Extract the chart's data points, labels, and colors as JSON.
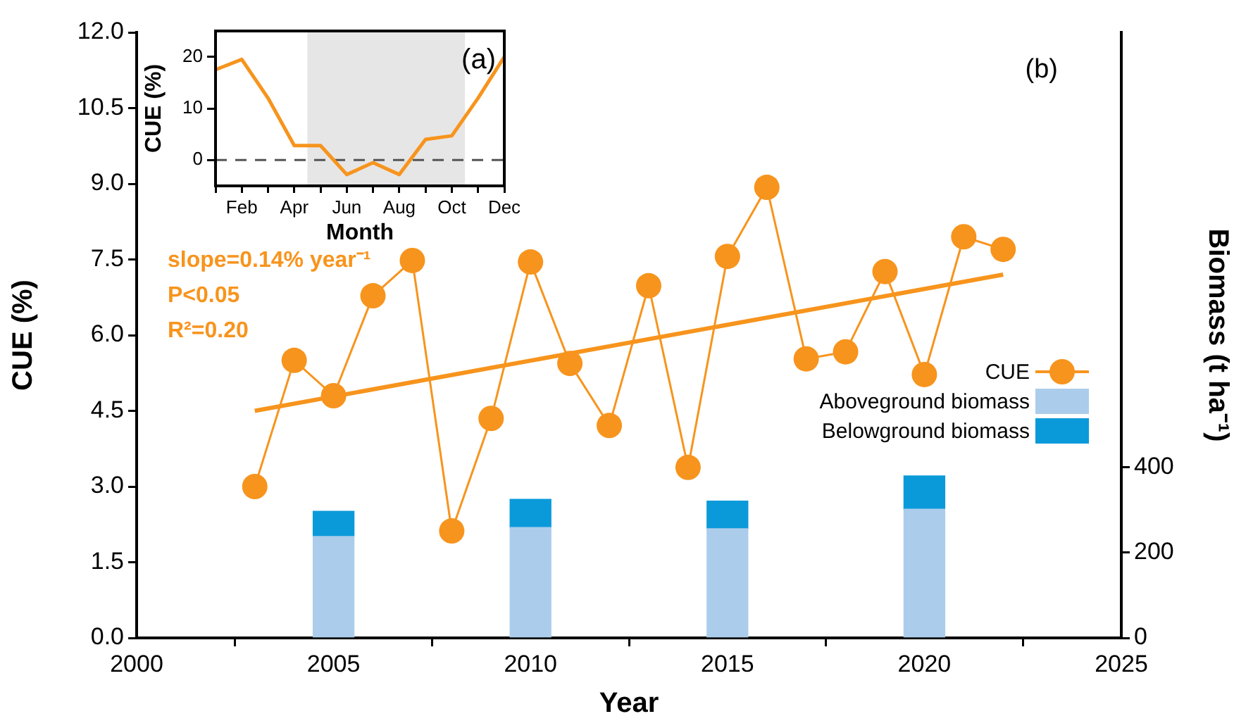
{
  "chart_data": [
    {
      "type": "line",
      "title": "(a)",
      "xlabel": "Month",
      "ylabel": "CUE (%)",
      "categories": [
        null,
        "Feb",
        null,
        "Apr",
        null,
        "Jun",
        null,
        "Aug",
        null,
        "Oct",
        null,
        "Dec"
      ],
      "ylim": [
        -5,
        25
      ],
      "yticks": [
        0,
        10,
        20
      ],
      "grid": false,
      "marker": "none",
      "bands": [
        {
          "axis": "x",
          "from": "Apr",
          "to": "Oct",
          "color": "#e6e6e6"
        }
      ],
      "ref_lines": [
        {
          "axis": "y",
          "value": 0,
          "color": "#555555",
          "line_style": "dashed"
        }
      ],
      "series": [
        {
          "color": "#f7941d",
          "values": [
            17.5,
            19.5,
            12,
            2.8,
            2.8,
            -2.8,
            -0.5,
            -2.8,
            4,
            4.7,
            12,
            20
          ]
        }
      ]
    },
    {
      "type": "line",
      "title": "(b)",
      "xlabel": "Year",
      "ylabel": "CUE (%)",
      "y2label": "Biomass (t ha⁻¹)",
      "xlim": [
        2000,
        2025
      ],
      "xticks": [
        2000,
        2005,
        2010,
        2015,
        2020,
        2025
      ],
      "ylim": [
        0,
        12
      ],
      "yticks": [
        {
          "value": 0,
          "label": "0.0"
        },
        1.5,
        {
          "value": 3,
          "label": "3.0"
        },
        4.5,
        {
          "value": 6,
          "label": "6.0"
        },
        7.5,
        {
          "value": 9,
          "label": "9.0"
        },
        10.5,
        {
          "value": 12,
          "label": "12.0"
        }
      ],
      "y2lim": [
        0,
        1420
      ],
      "y2ticks": [
        0,
        200,
        400
      ],
      "stacked": true,
      "grid": false,
      "legend": "right",
      "annotations": [
        "slope=0.14% year⁻¹",
        "P<0.05",
        "R²=0.20"
      ],
      "series": [
        {
          "name": "CUE",
          "type": "line",
          "marker": "circle",
          "color": "#f7941d",
          "x": [
            2003,
            2004,
            2005,
            2006,
            2007,
            2008,
            2009,
            2010,
            2011,
            2012,
            2013,
            2014,
            2015,
            2016,
            2017,
            2018,
            2019,
            2020,
            2021,
            2022
          ],
          "values": [
            3.0,
            5.5,
            4.8,
            6.78,
            7.48,
            2.12,
            4.35,
            7.45,
            5.44,
            4.21,
            6.98,
            3.38,
            7.56,
            8.93,
            5.53,
            5.67,
            7.26,
            5.22,
            7.95,
            7.7
          ]
        },
        {
          "type": "line",
          "marker": "none",
          "color": "#f7941d",
          "x": [
            2003,
            2022
          ],
          "values": [
            4.5,
            7.2
          ]
        },
        {
          "name": "Aboveground biomass",
          "type": "bar",
          "axis": "y2",
          "color": "#abcdeb",
          "x": [
            2005,
            2010,
            2015,
            2020
          ],
          "values": [
            238,
            259,
            256,
            302
          ]
        },
        {
          "name": "Belowground biomass",
          "type": "bar",
          "axis": "y2",
          "color": "#0a9ad9",
          "x": [
            2005,
            2010,
            2015,
            2020
          ],
          "values": [
            59,
            66,
            65,
            78
          ]
        }
      ]
    }
  ]
}
